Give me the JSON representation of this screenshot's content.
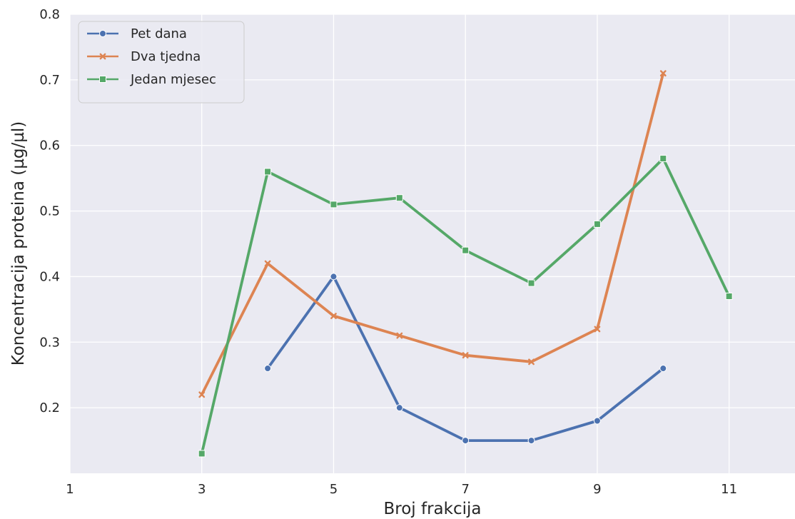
{
  "chart_data": {
    "type": "line",
    "xlabel": "Broj frakcija",
    "ylabel": "Koncentracija proteina (µg/µl)",
    "xlim": [
      1,
      12
    ],
    "ylim": [
      0.1,
      0.8
    ],
    "xticks": [
      1,
      3,
      5,
      7,
      9,
      11
    ],
    "xtick_labels": [
      "1",
      "3",
      "5",
      "7",
      "9",
      "11"
    ],
    "yticks": [
      0.2,
      0.3,
      0.4,
      0.5,
      0.6,
      0.7,
      0.8
    ],
    "ytick_labels": [
      "0.2",
      "0.3",
      "0.4",
      "0.5",
      "0.6",
      "0.7",
      "0.8"
    ],
    "grid": true,
    "legend_position": "top-left",
    "series": [
      {
        "name": "Pet dana",
        "color": "#4c72b0",
        "marker": "circle",
        "x": [
          4,
          5,
          6,
          7,
          8,
          9,
          10
        ],
        "y": [
          0.26,
          0.4,
          0.2,
          0.15,
          0.15,
          0.18,
          0.26
        ]
      },
      {
        "name": "Dva tjedna",
        "color": "#dd8452",
        "marker": "x",
        "x": [
          3,
          4,
          5,
          6,
          7,
          8,
          9,
          10
        ],
        "y": [
          0.22,
          0.42,
          0.34,
          0.31,
          0.28,
          0.27,
          0.32,
          0.71
        ]
      },
      {
        "name": "Jedan mjesec",
        "color": "#55a868",
        "marker": "square",
        "x": [
          3,
          4,
          5,
          6,
          7,
          8,
          9,
          10,
          11
        ],
        "y": [
          0.13,
          0.56,
          0.51,
          0.52,
          0.44,
          0.39,
          0.48,
          0.58,
          0.37
        ]
      }
    ]
  }
}
